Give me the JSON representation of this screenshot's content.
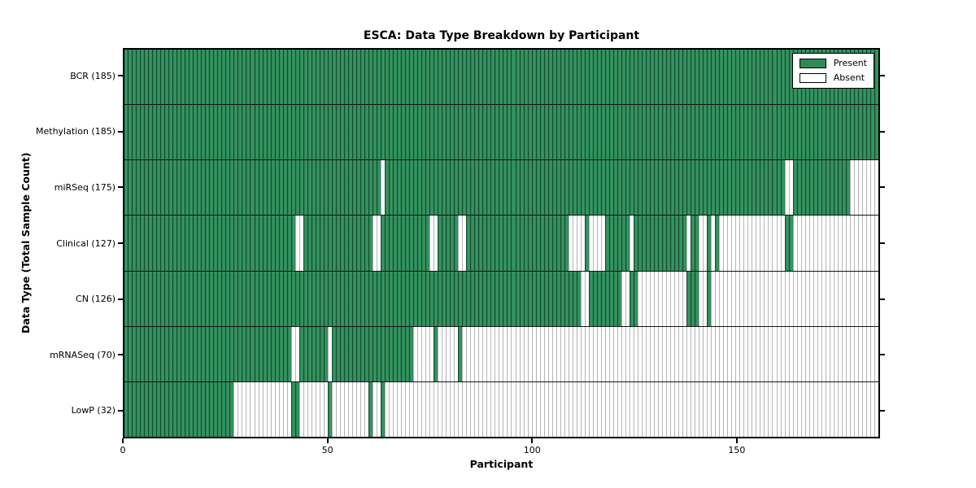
{
  "chart_data": {
    "type": "heatmap",
    "title": "ESCA: Data Type Breakdown by Participant",
    "xlabel": "Participant",
    "ylabel": "Data Type (Total Sample Count)",
    "x_range": [
      0,
      185
    ],
    "n_participants": 185,
    "x_ticks": [
      0,
      50,
      100,
      150
    ],
    "grid": false,
    "legend_position": "upper right",
    "colors": {
      "present": "#2e8b57",
      "absent": "#ffffff",
      "present_edge": "#174e2f",
      "absent_edge": "#b5b5b5",
      "frame": "#000000"
    },
    "legend": [
      {
        "label": "Present",
        "color": "#2e8b57"
      },
      {
        "label": "Absent",
        "color": "#ffffff"
      }
    ],
    "rows": [
      {
        "label": "BCR (185)",
        "data_type": "BCR",
        "total": 185,
        "present_runs": [
          [
            0,
            184
          ]
        ]
      },
      {
        "label": "Methylation (185)",
        "data_type": "Methylation",
        "total": 185,
        "present_runs": [
          [
            0,
            184
          ]
        ]
      },
      {
        "label": "miRSeq (175)",
        "data_type": "miRSeq",
        "total": 175,
        "present_runs": [
          [
            0,
            62
          ],
          [
            64,
            161
          ],
          [
            164,
            177
          ]
        ]
      },
      {
        "label": "Clinical (127)",
        "data_type": "Clinical",
        "total": 127,
        "present_runs": [
          [
            0,
            41
          ],
          [
            44,
            60
          ],
          [
            63,
            74
          ],
          [
            77,
            81
          ],
          [
            84,
            108
          ],
          [
            113,
            113
          ],
          [
            118,
            123
          ],
          [
            125,
            137
          ],
          [
            139,
            140
          ],
          [
            143,
            143
          ],
          [
            145,
            145
          ],
          [
            162,
            163
          ]
        ]
      },
      {
        "label": "CN (126)",
        "data_type": "CN",
        "total": 126,
        "present_runs": [
          [
            0,
            111
          ],
          [
            114,
            121
          ],
          [
            124,
            125
          ],
          [
            138,
            140
          ],
          [
            143,
            143
          ]
        ]
      },
      {
        "label": "mRNASeq (70)",
        "data_type": "mRNASeq",
        "total": 70,
        "present_runs": [
          [
            0,
            40
          ],
          [
            43,
            49
          ],
          [
            51,
            70
          ],
          [
            76,
            76
          ],
          [
            82,
            82
          ]
        ]
      },
      {
        "label": "LowP (32)",
        "data_type": "LowP",
        "total": 32,
        "present_runs": [
          [
            0,
            26
          ],
          [
            41,
            42
          ],
          [
            50,
            50
          ],
          [
            60,
            60
          ],
          [
            63,
            63
          ]
        ]
      }
    ]
  }
}
